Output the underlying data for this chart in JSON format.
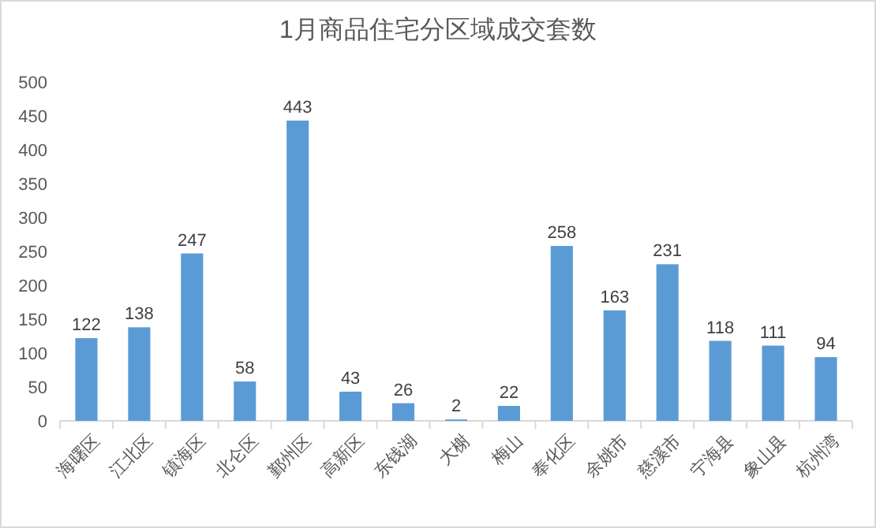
{
  "chart_data": {
    "type": "bar",
    "title": "1月商品住宅分区域成交套数",
    "categories": [
      "海曙区",
      "江北区",
      "镇海区",
      "北仑区",
      "鄞州区",
      "高新区",
      "东钱湖",
      "大榭",
      "梅山",
      "奉化区",
      "余姚市",
      "慈溪市",
      "宁海县",
      "象山县",
      "杭州湾"
    ],
    "values": [
      122,
      138,
      247,
      58,
      443,
      43,
      26,
      2,
      22,
      258,
      163,
      231,
      118,
      111,
      94
    ],
    "color": "#5b9bd5",
    "ylim": [
      0,
      500
    ],
    "yticks": [
      0,
      50,
      100,
      150,
      200,
      250,
      300,
      350,
      400,
      450,
      500
    ],
    "grid": false,
    "data_labels": true
  }
}
